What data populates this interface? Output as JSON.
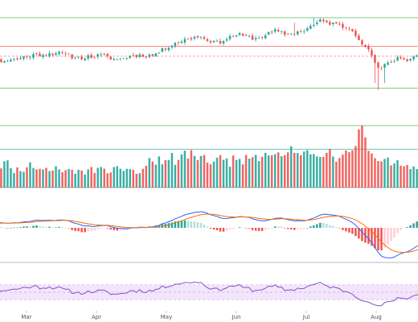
{
  "colors": {
    "up": "#26a69a",
    "down": "#ef5350",
    "macd_line": "#2962ff",
    "signal_line": "#ff6d00",
    "hist_up_strong": "#26a69a",
    "hist_up_weak": "#b2dfdb",
    "hist_down_strong": "#ef5350",
    "hist_down_weak": "#ffcdd2",
    "rsi_line": "#7e57c2",
    "rsi_band": "#f3e5fb",
    "rsi_guides": "#c9a6e6",
    "level_green": "#4caf50",
    "level_red": "#ef5350",
    "level_teal": "#26a69a",
    "level_gray": "#787b86",
    "separator": "#9aa0ab"
  },
  "chart_data": {
    "type": "candlestick",
    "grid": false,
    "x_axis": {
      "months": [
        "Mar",
        "Apr",
        "May",
        "Jun",
        "Jul",
        "Aug"
      ],
      "first_bar_month_fraction": 0.13,
      "trading_days_per_month": 21.7
    },
    "panes": [
      {
        "name": "price",
        "type": "candlestick",
        "ylim": [
          0,
          100
        ],
        "levels": [
          {
            "value": 100,
            "color": "level_green",
            "style": "solid"
          },
          {
            "value": 66,
            "color": "level_red",
            "style": "solid"
          },
          {
            "value": 54,
            "color": "level_red",
            "style": "dashed"
          },
          {
            "value": 16,
            "color": "level_green",
            "style": "solid"
          }
        ],
        "anchors": [
          [
            0,
            43
          ],
          [
            5,
            52
          ],
          [
            10,
            48
          ],
          [
            15,
            50
          ],
          [
            20,
            55
          ],
          [
            28,
            58
          ],
          [
            35,
            52
          ],
          [
            42,
            55
          ],
          [
            47,
            50
          ],
          [
            52,
            55
          ],
          [
            58,
            55
          ],
          [
            65,
            70
          ],
          [
            72,
            78
          ],
          [
            78,
            70
          ],
          [
            84,
            80
          ],
          [
            90,
            75
          ],
          [
            96,
            84
          ],
          [
            100,
            80
          ],
          [
            105,
            85
          ],
          [
            110,
            96
          ],
          [
            115,
            92
          ],
          [
            120,
            86
          ],
          [
            123,
            70
          ],
          [
            126,
            55
          ],
          [
            128,
            38
          ],
          [
            131,
            45
          ],
          [
            134,
            52
          ],
          [
            137,
            50
          ],
          [
            140,
            55
          ],
          [
            143,
            48
          ],
          [
            146,
            52
          ],
          [
            150,
            45
          ],
          [
            153,
            49
          ],
          [
            157,
            52
          ],
          [
            160,
            54
          ]
        ],
        "spikes": [
          [
            102,
            94
          ],
          [
            108,
            100
          ],
          [
            127,
            22
          ],
          [
            128,
            14
          ],
          [
            130,
            22
          ]
        ]
      },
      {
        "name": "volume",
        "type": "bar",
        "ylim": [
          0,
          100
        ],
        "levels": [
          {
            "value": 100,
            "color": "level_green",
            "style": "solid"
          },
          {
            "value": 62,
            "color": "level_teal",
            "style": "solid"
          },
          {
            "value": 0,
            "color": "level_gray",
            "style": "solid"
          }
        ],
        "base": [
          28,
          42,
          35,
          30,
          38,
          48,
          34,
          28,
          40,
          32,
          26,
          30,
          38,
          44,
          30,
          28,
          36,
          24,
          30,
          34,
          40,
          28,
          26,
          32,
          30,
          36,
          28,
          24,
          30,
          34,
          26,
          28,
          32,
          24,
          22,
          30,
          28,
          26,
          34,
          30,
          24,
          28,
          30,
          26,
          22,
          28,
          32,
          30,
          26,
          24,
          28,
          34,
          30,
          26,
          28,
          30,
          36,
          44,
          38,
          40,
          46,
          42,
          48,
          40,
          52,
          38,
          46,
          54,
          58,
          46,
          62,
          48,
          44,
          50,
          56,
          42,
          38,
          46,
          52,
          48,
          40,
          44,
          38,
          50,
          46,
          42,
          40,
          48,
          44,
          52,
          48,
          46,
          50,
          54,
          48,
          52,
          56,
          60,
          54,
          50,
          58,
          64,
          56,
          52,
          48,
          60,
          62,
          58,
          54,
          50,
          48,
          52,
          56,
          60,
          50,
          46,
          52,
          58,
          62,
          56,
          64,
          70,
          92,
          100,
          82,
          60,
          56,
          52,
          46,
          40,
          48,
          44,
          38,
          36,
          40,
          32,
          30,
          34,
          28,
          30,
          26,
          24,
          28,
          26,
          22,
          24,
          20,
          22,
          18,
          20,
          16,
          18,
          14,
          16,
          14,
          12,
          14,
          12,
          10,
          12,
          10
        ]
      },
      {
        "name": "macd",
        "type": "line",
        "ylim": [
          -100,
          100
        ],
        "series": [
          {
            "key": "macd",
            "color": "macd_line"
          },
          {
            "key": "signal",
            "color": "signal_line"
          },
          {
            "key": "histogram",
            "color": "hist_up_strong"
          }
        ]
      },
      {
        "name": "rsi",
        "type": "line",
        "ylim": [
          0,
          100
        ],
        "band": [
          30,
          70
        ],
        "guides": [
          30,
          50,
          70
        ],
        "series": [
          {
            "key": "rsi",
            "color": "rsi_line"
          }
        ]
      }
    ]
  }
}
